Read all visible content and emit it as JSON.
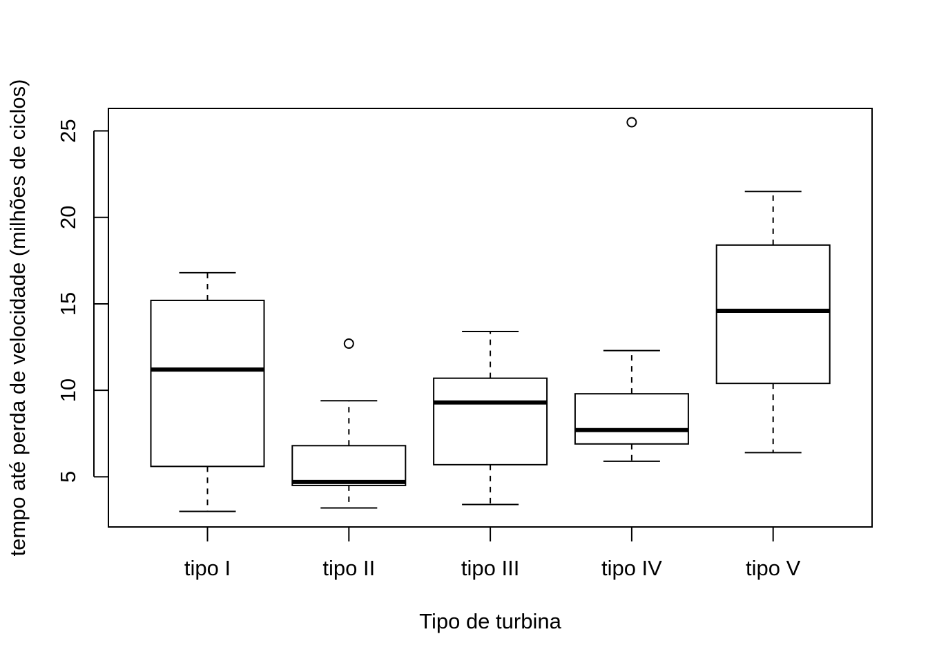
{
  "chart_data": {
    "type": "boxplot",
    "title": "",
    "xlabel": "Tipo de turbina",
    "ylabel": "tempo até perda de velocidade (milhões de ciclos)",
    "ylim": [
      2.1,
      26.3
    ],
    "yticks": [
      5,
      10,
      15,
      20,
      25
    ],
    "categories": [
      "tipo I",
      "tipo II",
      "tipo III",
      "tipo IV",
      "tipo V"
    ],
    "boxes": [
      {
        "category": "tipo I",
        "whisker_low": 3.0,
        "q1": 5.6,
        "median": 11.2,
        "q3": 15.2,
        "whisker_high": 16.8,
        "outliers": []
      },
      {
        "category": "tipo II",
        "whisker_low": 3.2,
        "q1": 4.5,
        "median": 4.7,
        "q3": 6.8,
        "whisker_high": 9.4,
        "outliers": [
          12.7
        ]
      },
      {
        "category": "tipo III",
        "whisker_low": 3.4,
        "q1": 5.7,
        "median": 9.3,
        "q3": 10.7,
        "whisker_high": 13.4,
        "outliers": []
      },
      {
        "category": "tipo IV",
        "whisker_low": 5.9,
        "q1": 6.9,
        "median": 7.7,
        "q3": 9.8,
        "whisker_high": 12.3,
        "outliers": [
          25.5
        ]
      },
      {
        "category": "tipo V",
        "whisker_low": 6.4,
        "q1": 10.4,
        "median": 14.6,
        "q3": 18.4,
        "whisker_high": 21.5,
        "outliers": []
      }
    ],
    "grid": false,
    "legend": "none",
    "colors": {
      "stroke": "#000000",
      "fill": "#ffffff"
    }
  }
}
